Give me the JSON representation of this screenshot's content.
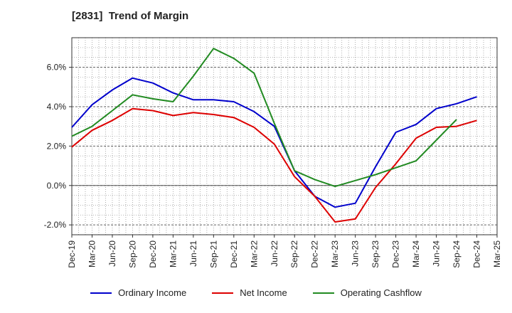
{
  "title": "[2831]  Trend of Margin",
  "chart_data": {
    "type": "line",
    "title": "[2831]  Trend of Margin",
    "xlabel": "",
    "ylabel": "",
    "categories": [
      "Dec-19",
      "Mar-20",
      "Jun-20",
      "Sep-20",
      "Dec-20",
      "Mar-21",
      "Jun-21",
      "Sep-21",
      "Dec-21",
      "Mar-22",
      "Jun-22",
      "Sep-22",
      "Dec-22",
      "Mar-23",
      "Jun-23",
      "Sep-23",
      "Dec-23",
      "Mar-24",
      "Jun-24",
      "Sep-24",
      "Dec-24",
      "Mar-25"
    ],
    "y_ticks": [
      "6.0%",
      "4.0%",
      "2.0%",
      "0.0%",
      "-2.0%"
    ],
    "y_tick_values": [
      6,
      4,
      2,
      0,
      -2
    ],
    "ylim": [
      -2.5,
      7.5
    ],
    "grid": true,
    "legend_position": "bottom",
    "series": [
      {
        "name": "Ordinary Income",
        "color": "#0000cc",
        "values": [
          2.95,
          4.1,
          4.85,
          5.45,
          5.2,
          4.7,
          4.35,
          4.35,
          4.25,
          3.75,
          3.0,
          0.75,
          -0.55,
          -1.1,
          -0.9,
          0.95,
          2.7,
          3.1,
          3.9,
          4.15,
          4.5,
          null
        ]
      },
      {
        "name": "Net Income",
        "color": "#dd0000",
        "values": [
          1.95,
          2.8,
          3.3,
          3.9,
          3.8,
          3.55,
          3.7,
          3.6,
          3.45,
          2.95,
          2.1,
          0.45,
          -0.55,
          -1.85,
          -1.7,
          -0.1,
          1.1,
          2.4,
          2.95,
          3.0,
          3.3,
          null
        ]
      },
      {
        "name": "Operating Cashflow",
        "color": "#228b22",
        "values": [
          2.5,
          3.0,
          3.8,
          4.6,
          4.4,
          4.25,
          5.55,
          6.95,
          6.45,
          5.7,
          3.15,
          0.75,
          0.3,
          -0.05,
          0.25,
          0.55,
          0.9,
          1.25,
          2.3,
          3.35,
          null,
          null
        ]
      }
    ]
  }
}
